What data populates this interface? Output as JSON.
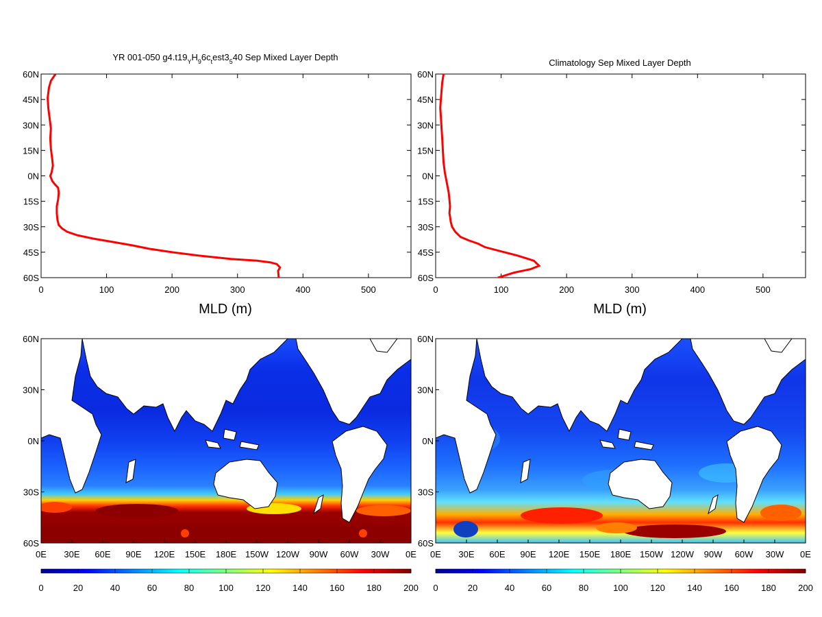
{
  "profiles": [
    {
      "title_main": "YR 001-050 g4.t19",
      "title_segments": [
        {
          "t": "YR 001-050 g4.t19",
          "sub": false
        },
        {
          "t": "Y",
          "sub": true
        },
        {
          "t": "H",
          "sub": false
        },
        {
          "t": "9",
          "sub": true
        },
        {
          "t": "6c",
          "sub": false
        },
        {
          "t": "t",
          "sub": true
        },
        {
          "t": "est3",
          "sub": false
        },
        {
          "t": "5",
          "sub": true
        },
        {
          "t": "40 Sep Mixed Layer Depth",
          "sub": false
        }
      ],
      "xlabel": "MLD (m)"
    },
    {
      "title_segments": [
        {
          "t": "Climatology Sep Mixed Layer Depth",
          "sub": false
        }
      ],
      "xlabel": "MLD (m)"
    }
  ],
  "lat_ticks": [
    "60N",
    "45N",
    "30N",
    "15N",
    "0N",
    "15S",
    "30S",
    "45S",
    "60S"
  ],
  "map_lat_ticks": [
    "60N",
    "30N",
    "0N",
    "30S",
    "60S"
  ],
  "mld_ticks": [
    "0",
    "100",
    "200",
    "300",
    "400",
    "500"
  ],
  "lon_ticks": [
    "0E",
    "30E",
    "60E",
    "90E",
    "120E",
    "150E",
    "180E",
    "150W",
    "120W",
    "90W",
    "60W",
    "30W",
    "0E"
  ],
  "colorbar_ticks": [
    "0",
    "20",
    "40",
    "60",
    "80",
    "100",
    "120",
    "140",
    "160",
    "180",
    "200"
  ],
  "colors": {
    "line": "#ff0000",
    "land": "#ffffff",
    "coast": "#000000",
    "colormap": [
      "#00008f",
      "#0000ff",
      "#0080ff",
      "#00ffff",
      "#80ff80",
      "#ffff00",
      "#ff8000",
      "#ff0000",
      "#800000"
    ]
  },
  "chart_data": [
    {
      "type": "line",
      "panel": "model-profile",
      "title": "YR 001-050 g4.t19_Y H_9 6c_t est3_5 40 Sep Mixed Layer Depth",
      "xlabel": "MLD (m)",
      "ylabel": "",
      "xlim": [
        0,
        565
      ],
      "ylim": [
        -60,
        60
      ],
      "series": [
        {
          "x": [
            22,
            15,
            12,
            10,
            11,
            13,
            15,
            14,
            15,
            17,
            18,
            16,
            14,
            17,
            21,
            26,
            27,
            26,
            24,
            24,
            25,
            27,
            32,
            40,
            55,
            80,
            110,
            140,
            165,
            200,
            240,
            290,
            330,
            350,
            360,
            365,
            362,
            363
          ],
          "y": [
            60,
            56,
            52,
            46,
            40,
            34,
            28,
            22,
            16,
            10,
            6,
            2,
            0,
            -3,
            -5,
            -7,
            -10,
            -14,
            -18,
            -22,
            -26,
            -29,
            -31,
            -33,
            -35,
            -37,
            -39,
            -41,
            -43,
            -45,
            -47,
            -49,
            -50,
            -51,
            -52,
            -54,
            -56,
            -60
          ]
        }
      ]
    },
    {
      "type": "line",
      "panel": "climatology-profile",
      "title": "Climatology Sep Mixed Layer Depth",
      "xlabel": "MLD (m)",
      "ylabel": "",
      "xlim": [
        0,
        565
      ],
      "ylim": [
        -60,
        60
      ],
      "series": [
        {
          "x": [
            12,
            10,
            9,
            8,
            7,
            8,
            9,
            10,
            11,
            12,
            14,
            16,
            18,
            20,
            21,
            22,
            21,
            22,
            23,
            25,
            30,
            38,
            50,
            65,
            75,
            95,
            125,
            150,
            158,
            145,
            120,
            95
          ],
          "y": [
            60,
            55,
            50,
            45,
            40,
            35,
            28,
            22,
            15,
            8,
            2,
            -2,
            -6,
            -10,
            -14,
            -18,
            -22,
            -24,
            -27,
            -30,
            -33,
            -36,
            -38,
            -40,
            -42,
            -44,
            -47,
            -50,
            -53,
            -55,
            -57,
            -60
          ]
        }
      ]
    },
    {
      "type": "heatmap",
      "panel": "model-map",
      "xlabel": "",
      "ylabel": "",
      "x_ticks": [
        "0E",
        "30E",
        "60E",
        "90E",
        "120E",
        "150E",
        "180E",
        "150W",
        "120W",
        "90W",
        "60W",
        "30W",
        "0E"
      ],
      "y_ticks": [
        "60N",
        "30N",
        "0N",
        "30S",
        "60S"
      ],
      "colorbar_range": [
        0,
        200
      ],
      "lat_rows": [
        60,
        50,
        40,
        30,
        20,
        10,
        0,
        -10,
        -20,
        -30,
        -35,
        -40,
        -45,
        -50,
        -55,
        -60
      ],
      "zonal_mld_m": [
        30,
        20,
        15,
        15,
        15,
        18,
        25,
        35,
        40,
        55,
        100,
        200,
        200,
        200,
        200,
        200
      ]
    },
    {
      "type": "heatmap",
      "panel": "climatology-map",
      "xlabel": "",
      "ylabel": "",
      "x_ticks": [
        "0E",
        "30E",
        "60E",
        "90E",
        "120E",
        "150E",
        "180E",
        "150W",
        "120W",
        "90W",
        "60W",
        "30W",
        "0E"
      ],
      "y_ticks": [
        "60N",
        "30N",
        "0N",
        "30S",
        "60S"
      ],
      "colorbar_range": [
        0,
        200
      ],
      "lat_rows": [
        60,
        50,
        40,
        30,
        20,
        10,
        0,
        -10,
        -20,
        -30,
        -35,
        -40,
        -45,
        -50,
        -55,
        -60
      ],
      "zonal_mld_m": [
        35,
        25,
        20,
        20,
        20,
        20,
        25,
        35,
        50,
        55,
        70,
        120,
        130,
        120,
        110,
        90
      ]
    }
  ]
}
